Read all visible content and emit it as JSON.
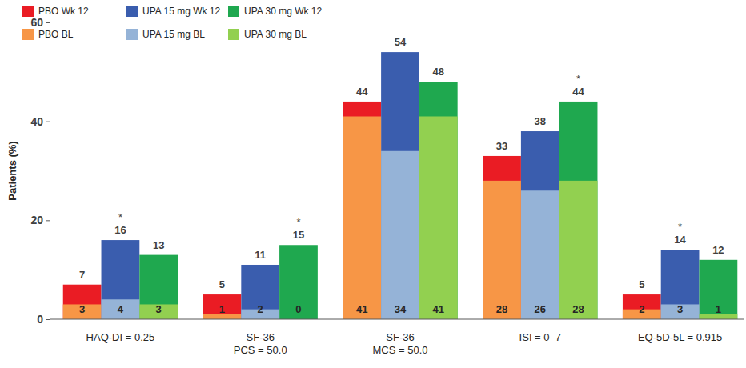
{
  "chart_data": {
    "type": "bar",
    "stacked": false,
    "data_labels": true,
    "legend": "upper left",
    "grid": false,
    "y_label": "Patients (%)",
    "categories": [
      "HAQ-DI = 0.25",
      "SF-36\nPCS = 50.0",
      "SF-36\nMCS = 50.0",
      "ISI = 0–7",
      "EQ-5D-5L = 0.915"
    ],
    "ylim": [
      0,
      60
    ],
    "yticks": [
      0,
      20,
      40,
      60
    ],
    "series": [
      {
        "name": "PBO Wk 12",
        "color": "#ea1c24",
        "values": [
          7,
          5,
          44,
          33,
          5
        ]
      },
      {
        "name": "UPA 15 mg Wk 12",
        "color": "#3a5dae",
        "values": [
          16,
          11,
          54,
          38,
          14
        ]
      },
      {
        "name": "UPA 30 mg Wk 12",
        "color": "#1fa84f",
        "values": [
          13,
          15,
          48,
          44,
          12
        ]
      },
      {
        "name": "PBO BL",
        "color": "#f79646",
        "values": [
          3,
          1,
          41,
          28,
          2
        ]
      },
      {
        "name": "UPA 15 mg BL",
        "color": "#95b3d7",
        "values": [
          4,
          2,
          34,
          26,
          3
        ]
      },
      {
        "name": "UPA 30 mg BL",
        "color": "#92d050",
        "values": [
          3,
          0,
          41,
          28,
          1
        ]
      }
    ],
    "annotations": [
      {
        "text": "*",
        "category": "HAQ-DI = 0.25",
        "series": "UPA 15 mg Wk 12"
      },
      {
        "text": "*",
        "category": "SF-36\nPCS = 50.0",
        "series": "UPA 30 mg Wk 12"
      },
      {
        "text": "*",
        "category": "ISI = 0–7",
        "series": "UPA 30 mg Wk 12"
      },
      {
        "text": "*",
        "category": "EQ-5D-5L = 0.915",
        "series": "UPA 15 mg Wk 12"
      }
    ]
  }
}
